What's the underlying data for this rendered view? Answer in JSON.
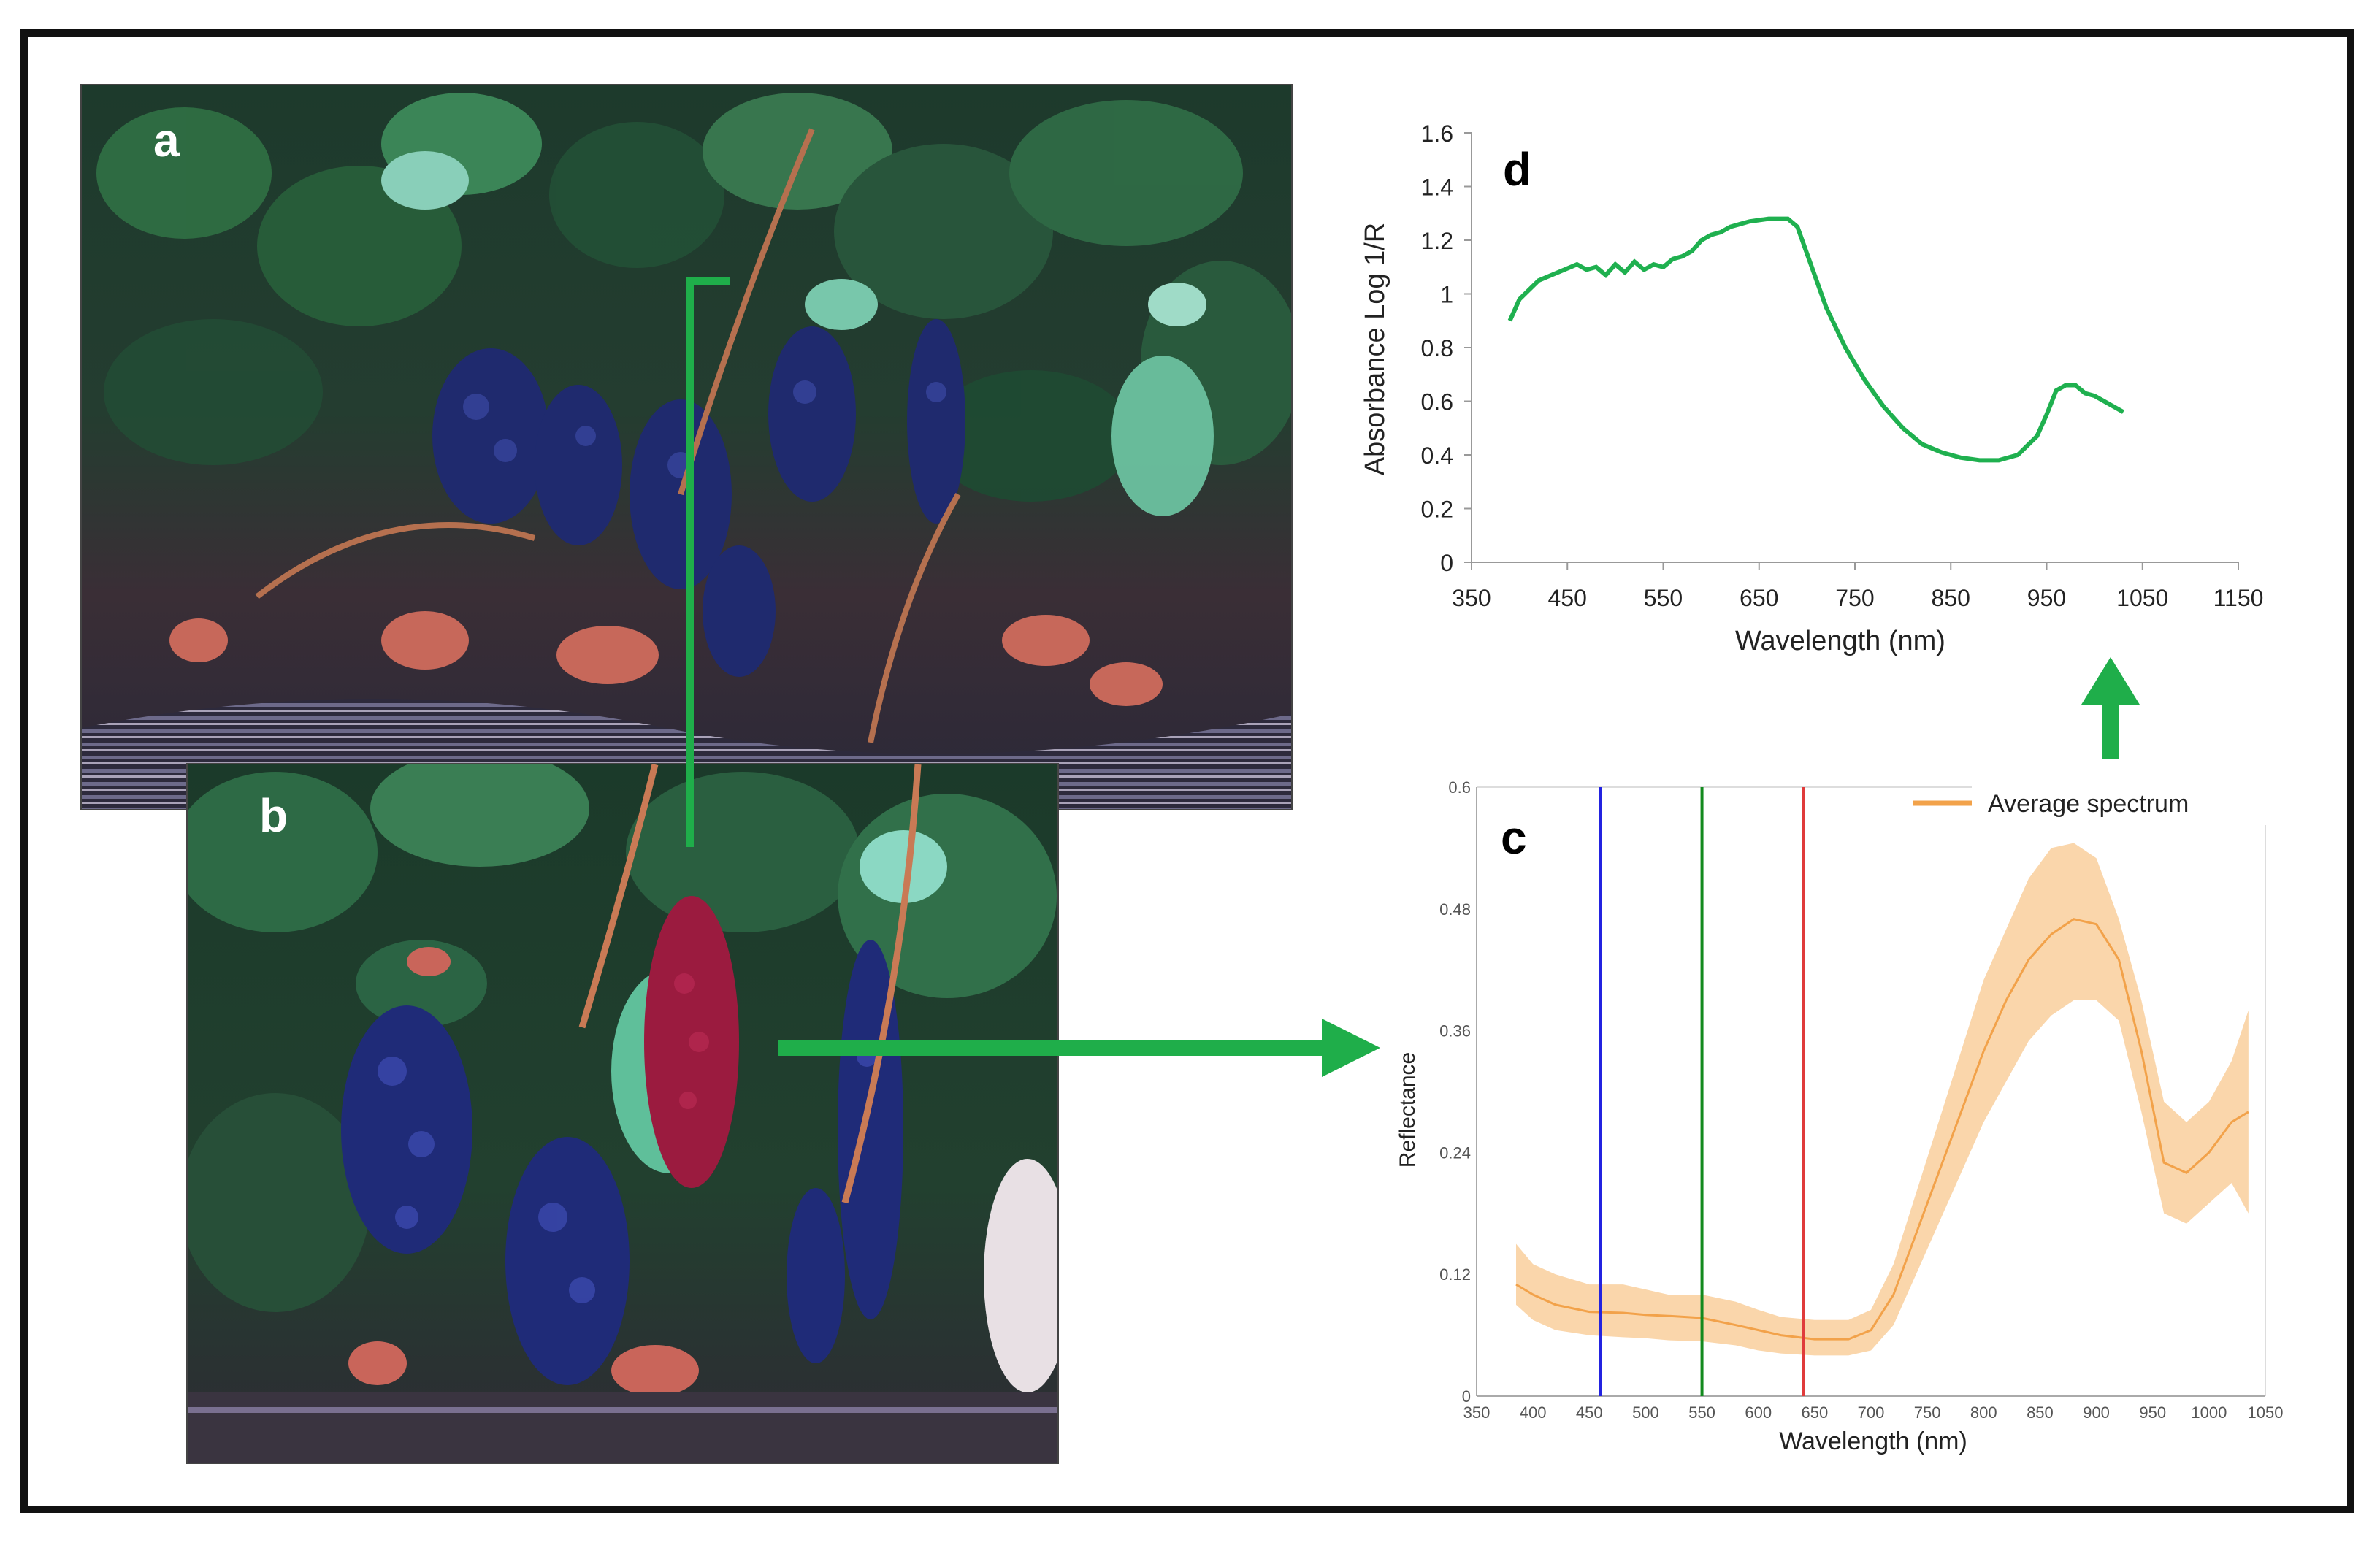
{
  "panels": {
    "a": "a",
    "b": "b",
    "c": "c",
    "d": "d"
  },
  "colors": {
    "arrow": "#1fae4a",
    "absorbance_line": "#1fb04f",
    "avg_spectrum": "#f2a24a",
    "band_fill": "#f9cf9c",
    "band_blue": "#2323e0",
    "band_green": "#138a1e",
    "band_red": "#e03b3b"
  },
  "chart_data": [
    {
      "id": "d",
      "type": "line",
      "title": "",
      "xlabel": "Wavelength (nm)",
      "ylabel": "Absorbance Log 1/R",
      "xlim": [
        350,
        1150
      ],
      "ylim": [
        0,
        1.6
      ],
      "xticks": [
        "350",
        "450",
        "550",
        "650",
        "750",
        "850",
        "950",
        "1050",
        "1150"
      ],
      "yticks": [
        "0",
        "0.2",
        "0.4",
        "0.6",
        "0.8",
        "1",
        "1.2",
        "1.4",
        "1.6"
      ],
      "series": [
        {
          "name": "Absorbance",
          "x": [
            390,
            400,
            420,
            440,
            460,
            470,
            480,
            490,
            500,
            510,
            520,
            530,
            540,
            550,
            560,
            570,
            580,
            590,
            600,
            610,
            620,
            630,
            640,
            660,
            680,
            690,
            700,
            720,
            740,
            760,
            780,
            800,
            820,
            840,
            860,
            880,
            900,
            920,
            940,
            950,
            960,
            970,
            980,
            990,
            1000,
            1010,
            1020,
            1030
          ],
          "y": [
            0.9,
            0.98,
            1.05,
            1.08,
            1.11,
            1.09,
            1.1,
            1.07,
            1.11,
            1.08,
            1.12,
            1.09,
            1.11,
            1.1,
            1.13,
            1.14,
            1.16,
            1.2,
            1.22,
            1.23,
            1.25,
            1.26,
            1.27,
            1.28,
            1.28,
            1.25,
            1.15,
            0.95,
            0.8,
            0.68,
            0.58,
            0.5,
            0.44,
            0.41,
            0.39,
            0.38,
            0.38,
            0.4,
            0.47,
            0.55,
            0.64,
            0.66,
            0.66,
            0.63,
            0.62,
            0.6,
            0.58,
            0.56
          ]
        }
      ]
    },
    {
      "id": "c",
      "type": "area",
      "title": "",
      "xlabel": "Wavelength (nm)",
      "ylabel": "Reflectance",
      "xlim": [
        350,
        1050
      ],
      "ylim": [
        0,
        0.6
      ],
      "xticks": [
        "350",
        "400",
        "450",
        "500",
        "550",
        "600",
        "650",
        "700",
        "750",
        "800",
        "850",
        "900",
        "950",
        "1000",
        "1050"
      ],
      "yticks": [
        "0",
        "0.12",
        "0.24",
        "0.36",
        "0.48",
        "0.6"
      ],
      "legend": "Average spectrum",
      "legend_position": "top-right",
      "vertical_lines": [
        {
          "x": 460,
          "color": "blue"
        },
        {
          "x": 550,
          "color": "green"
        },
        {
          "x": 640,
          "color": "red"
        }
      ],
      "series": [
        {
          "name": "Average spectrum",
          "x": [
            385,
            400,
            420,
            450,
            480,
            500,
            520,
            550,
            580,
            600,
            620,
            650,
            680,
            700,
            720,
            740,
            760,
            780,
            800,
            820,
            840,
            860,
            880,
            900,
            920,
            940,
            960,
            980,
            1000,
            1020,
            1035
          ],
          "y": [
            0.11,
            0.1,
            0.09,
            0.083,
            0.082,
            0.08,
            0.079,
            0.077,
            0.07,
            0.065,
            0.06,
            0.056,
            0.056,
            0.065,
            0.1,
            0.16,
            0.22,
            0.28,
            0.34,
            0.39,
            0.43,
            0.455,
            0.47,
            0.465,
            0.43,
            0.34,
            0.23,
            0.22,
            0.24,
            0.27,
            0.28
          ],
          "upper": [
            0.15,
            0.13,
            0.12,
            0.11,
            0.11,
            0.105,
            0.1,
            0.1,
            0.093,
            0.085,
            0.078,
            0.075,
            0.075,
            0.085,
            0.13,
            0.2,
            0.27,
            0.34,
            0.41,
            0.46,
            0.51,
            0.54,
            0.545,
            0.53,
            0.47,
            0.39,
            0.29,
            0.27,
            0.29,
            0.33,
            0.38
          ],
          "lower": [
            0.09,
            0.075,
            0.065,
            0.06,
            0.058,
            0.057,
            0.055,
            0.054,
            0.05,
            0.045,
            0.042,
            0.04,
            0.04,
            0.045,
            0.07,
            0.12,
            0.17,
            0.22,
            0.27,
            0.31,
            0.35,
            0.375,
            0.39,
            0.39,
            0.37,
            0.28,
            0.18,
            0.17,
            0.19,
            0.21,
            0.18
          ]
        }
      ]
    }
  ]
}
